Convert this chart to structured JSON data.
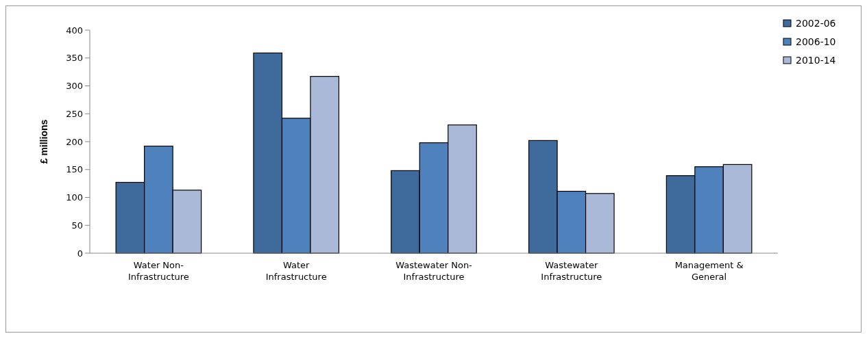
{
  "chart_data": {
    "type": "bar",
    "ylabel": "£ millions",
    "categories": [
      "Water Non-Infrastructure",
      "Water Infrastructure",
      "Wastewater Non-Infrastructure",
      "Wastewater Infrastructure",
      "Management & General"
    ],
    "series": [
      {
        "name": "2002-06",
        "color": "#3f6a9c",
        "values": [
          127,
          359,
          148,
          202,
          139
        ]
      },
      {
        "name": "2006-10",
        "color": "#4f81bd",
        "values": [
          192,
          242,
          198,
          111,
          155
        ]
      },
      {
        "name": "2010-14",
        "color": "#aab9d7",
        "values": [
          113,
          317,
          230,
          107,
          159
        ]
      }
    ],
    "ylim": [
      0,
      400
    ],
    "yticks": [
      0,
      50,
      100,
      150,
      200,
      250,
      300,
      350,
      400
    ],
    "grid": false,
    "legend": "top right"
  }
}
